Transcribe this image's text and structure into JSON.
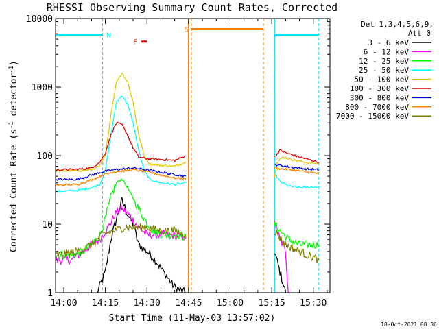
{
  "chart_data": {
    "type": "line",
    "title": "RHESSI Observing Summary Count Rates, Corrected",
    "xlabel": "Start Time (11-May-03 13:57:02)",
    "ylabel_main": "Corrected Count Rate (s",
    "ylabel_sup1": "-1",
    "ylabel_mid": " detector",
    "ylabel_sup2": "-1",
    "ylabel_end": ")",
    "footer": "18-Oct-2021 08:36",
    "y_scale": "log",
    "ylim": [
      1,
      10000
    ],
    "xlim": [
      "13:57:02",
      "15:36:00"
    ],
    "x_ticks": [
      "14:00",
      "14:15",
      "14:30",
      "14:45",
      "15:00",
      "15:15",
      "15:30"
    ],
    "y_ticks": [
      "1",
      "10",
      "100",
      "1000",
      "10000"
    ],
    "detector_info": {
      "line1": "Det 1,3,4,5,6,9,",
      "line2": "Att 0"
    },
    "flags": [
      {
        "label": "N",
        "color": "#00e5ee",
        "segments": [
          [
            "13:57",
            "14:14"
          ],
          [
            "15:16",
            "15:32"
          ]
        ],
        "y": 5800
      },
      {
        "label": "F",
        "color": "#e00000",
        "segments": [
          [
            "14:28",
            "14:30"
          ]
        ],
        "y": 4600
      },
      {
        "label": "S",
        "color": "#f08000",
        "segments": [
          [
            "14:46",
            "15:12"
          ]
        ],
        "y": 7000
      }
    ],
    "data_gaps": [
      [
        "14:45",
        "15:16"
      ]
    ],
    "series": [
      {
        "name": "3 - 6 keV",
        "color": "#000000",
        "points": [
          [
            "14:12",
            1
          ],
          [
            "14:15",
            2
          ],
          [
            "14:17",
            6
          ],
          [
            "14:19",
            12
          ],
          [
            "14:21",
            22
          ],
          [
            "14:23",
            14
          ],
          [
            "14:25",
            10
          ],
          [
            "14:27",
            5
          ],
          [
            "14:30",
            4
          ],
          [
            "14:33",
            3
          ],
          [
            "14:36",
            2
          ],
          [
            "14:40",
            1.2
          ],
          [
            "14:44",
            1
          ],
          [
            "15:16",
            4
          ],
          [
            "15:18",
            2
          ],
          [
            "15:20",
            1
          ]
        ]
      },
      {
        "name": "6 - 12 keV",
        "color": "#ff00ff",
        "points": [
          [
            "13:57",
            3
          ],
          [
            "14:03",
            3
          ],
          [
            "14:07",
            4
          ],
          [
            "14:10",
            5
          ],
          [
            "14:13",
            6
          ],
          [
            "14:16",
            9
          ],
          [
            "14:19",
            15
          ],
          [
            "14:21",
            17
          ],
          [
            "14:24",
            13
          ],
          [
            "14:27",
            9
          ],
          [
            "14:30",
            7
          ],
          [
            "14:34",
            7
          ],
          [
            "14:38",
            7
          ],
          [
            "14:44",
            6.5
          ],
          [
            "15:16",
            10
          ],
          [
            "15:18",
            6
          ],
          [
            "15:20",
            4
          ],
          [
            "15:21",
            1
          ]
        ]
      },
      {
        "name": "12 - 25 keV",
        "color": "#00ff00",
        "points": [
          [
            "13:57",
            3.5
          ],
          [
            "14:03",
            3.5
          ],
          [
            "14:07",
            4
          ],
          [
            "14:10",
            5
          ],
          [
            "14:13",
            7
          ],
          [
            "14:15",
            12
          ],
          [
            "14:17",
            25
          ],
          [
            "14:19",
            40
          ],
          [
            "14:21",
            46
          ],
          [
            "14:23",
            34
          ],
          [
            "14:26",
            20
          ],
          [
            "14:29",
            12
          ],
          [
            "14:32",
            8
          ],
          [
            "14:36",
            7
          ],
          [
            "14:40",
            7
          ],
          [
            "14:44",
            6.5
          ],
          [
            "15:16",
            10
          ],
          [
            "15:18",
            8
          ],
          [
            "15:21",
            6
          ],
          [
            "15:25",
            5
          ],
          [
            "15:32",
            5
          ]
        ]
      },
      {
        "name": "25 - 50 keV",
        "color": "#00ffff",
        "points": [
          [
            "13:57",
            30
          ],
          [
            "14:05",
            31
          ],
          [
            "14:10",
            34
          ],
          [
            "14:13",
            38
          ],
          [
            "14:15",
            60
          ],
          [
            "14:17",
            200
          ],
          [
            "14:19",
            600
          ],
          [
            "14:21",
            760
          ],
          [
            "14:23",
            560
          ],
          [
            "14:25",
            300
          ],
          [
            "14:27",
            120
          ],
          [
            "14:29",
            60
          ],
          [
            "14:31",
            45
          ],
          [
            "14:35",
            40
          ],
          [
            "14:40",
            38
          ],
          [
            "14:44",
            40
          ],
          [
            "15:16",
            55
          ],
          [
            "15:18",
            42
          ],
          [
            "15:21",
            36
          ],
          [
            "15:25",
            34
          ],
          [
            "15:32",
            35
          ]
        ]
      },
      {
        "name": "50 - 100 keV",
        "color": "#e6c800",
        "points": [
          [
            "13:57",
            60
          ],
          [
            "14:05",
            60
          ],
          [
            "14:10",
            62
          ],
          [
            "14:13",
            70
          ],
          [
            "14:15",
            100
          ],
          [
            "14:17",
            400
          ],
          [
            "14:19",
            1200
          ],
          [
            "14:21",
            1600
          ],
          [
            "14:23",
            1200
          ],
          [
            "14:25",
            600
          ],
          [
            "14:27",
            200
          ],
          [
            "14:29",
            100
          ],
          [
            "14:31",
            75
          ],
          [
            "14:35",
            72
          ],
          [
            "14:40",
            70
          ],
          [
            "14:44",
            80
          ],
          [
            "15:16",
            50
          ],
          [
            "15:17",
            80
          ],
          [
            "15:19",
            95
          ],
          [
            "15:22",
            88
          ],
          [
            "15:27",
            80
          ],
          [
            "15:32",
            75
          ]
        ]
      },
      {
        "name": "100 - 300 keV",
        "color": "#e00000",
        "points": [
          [
            "13:57",
            62
          ],
          [
            "14:05",
            63
          ],
          [
            "14:10",
            66
          ],
          [
            "14:13",
            80
          ],
          [
            "14:15",
            110
          ],
          [
            "14:17",
            200
          ],
          [
            "14:19",
            300
          ],
          [
            "14:21",
            280
          ],
          [
            "14:23",
            200
          ],
          [
            "14:25",
            130
          ],
          [
            "14:27",
            95
          ],
          [
            "14:30",
            90
          ],
          [
            "14:35",
            88
          ],
          [
            "14:40",
            85
          ],
          [
            "14:44",
            100
          ],
          [
            "15:16",
            95
          ],
          [
            "15:18",
            120
          ],
          [
            "15:20",
            110
          ],
          [
            "15:25",
            95
          ],
          [
            "15:32",
            80
          ]
        ]
      },
      {
        "name": "300 - 800 keV",
        "color": "#0000e0",
        "points": [
          [
            "13:57",
            45
          ],
          [
            "14:05",
            45
          ],
          [
            "14:10",
            52
          ],
          [
            "14:14",
            58
          ],
          [
            "14:18",
            62
          ],
          [
            "14:25",
            66
          ],
          [
            "14:30",
            62
          ],
          [
            "14:35",
            57
          ],
          [
            "14:40",
            53
          ],
          [
            "14:44",
            50
          ],
          [
            "15:16",
            74
          ],
          [
            "15:22",
            68
          ],
          [
            "15:27",
            64
          ],
          [
            "15:32",
            62
          ]
        ]
      },
      {
        "name": "800 - 7000 keV",
        "color": "#ff8000",
        "points": [
          [
            "13:57",
            37
          ],
          [
            "14:05",
            38
          ],
          [
            "14:10",
            44
          ],
          [
            "14:14",
            52
          ],
          [
            "14:18",
            58
          ],
          [
            "14:25",
            62
          ],
          [
            "14:30",
            58
          ],
          [
            "14:35",
            52
          ],
          [
            "14:40",
            47
          ],
          [
            "14:44",
            46
          ],
          [
            "15:16",
            66
          ],
          [
            "15:22",
            62
          ],
          [
            "15:27",
            58
          ],
          [
            "15:32",
            55
          ]
        ]
      },
      {
        "name": "7000 - 15000 keV",
        "color": "#808000",
        "points": [
          [
            "13:57",
            3.5
          ],
          [
            "14:05",
            4
          ],
          [
            "14:10",
            5
          ],
          [
            "14:14",
            7
          ],
          [
            "14:18",
            8
          ],
          [
            "14:22",
            9
          ],
          [
            "14:26",
            9
          ],
          [
            "14:30",
            9
          ],
          [
            "14:35",
            8
          ],
          [
            "14:40",
            8
          ],
          [
            "14:44",
            7
          ],
          [
            "15:16",
            8
          ],
          [
            "15:20",
            5
          ],
          [
            "15:25",
            4
          ],
          [
            "15:32",
            3
          ]
        ]
      }
    ]
  }
}
